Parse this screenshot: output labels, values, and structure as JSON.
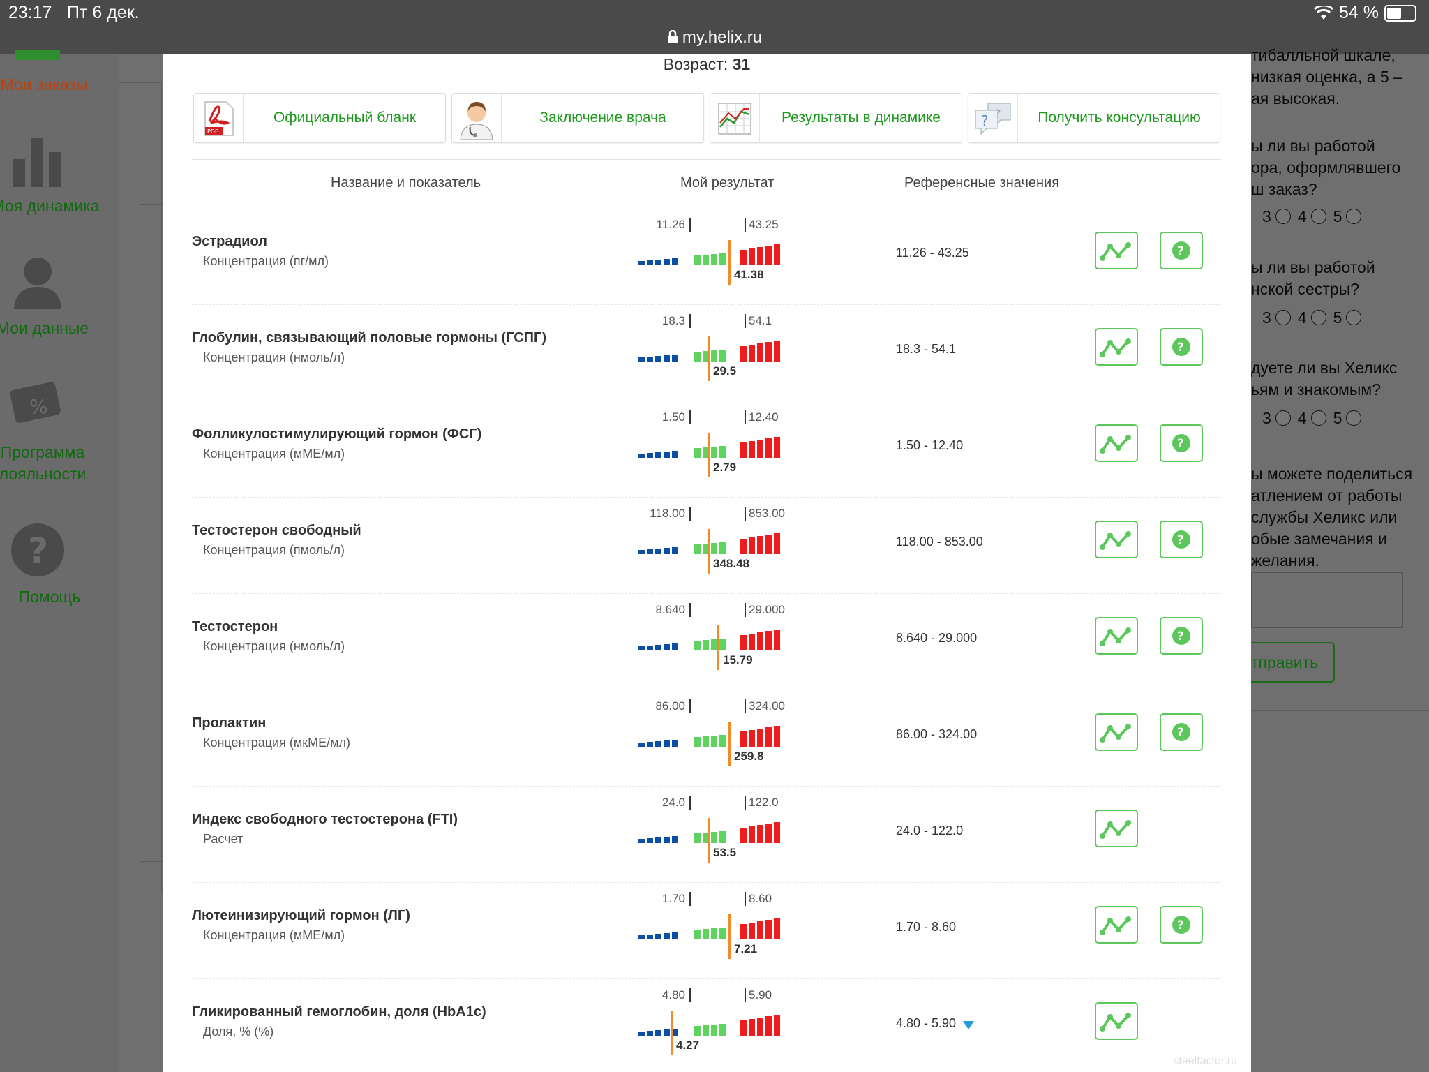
{
  "status": {
    "time": "23:17",
    "date": "Пт 6 дек.",
    "battery": "54 %",
    "url": "my.helix.ru"
  },
  "nav": [
    {
      "label": "Мои заказы"
    },
    {
      "label": "Моя динамика"
    },
    {
      "label": "Мои данные"
    },
    {
      "label": "Программа лояльности"
    },
    {
      "label": "Помощь"
    }
  ],
  "right": {
    "lines": [
      "тибалльной шкале,",
      "низкая оценка, а 5 –",
      "ая высокая.",
      "ы ли вы работой",
      "ора, оформлявшего",
      "ш заказ?",
      "ы ли вы работой",
      "нской сестры?",
      "дуете ли вы Хеликс",
      "ьям и знакомым?",
      "ы можете поделиться",
      "атлением от работы",
      "службы Хеликс или",
      "обые замечания и",
      "желания."
    ],
    "radio_labels": [
      "3",
      "4",
      "5"
    ],
    "submit": "тправить"
  },
  "modal": {
    "age_label": "Возраст:",
    "age_value": "31",
    "toolbar": [
      {
        "label": "Официальный бланк",
        "icon": "pdf-icon"
      },
      {
        "label": "Заключение врача",
        "icon": "doctor-icon"
      },
      {
        "label": "Результаты в динамике",
        "icon": "chart-icon"
      },
      {
        "label": "Получить консультацию",
        "icon": "chat-question-icon"
      }
    ],
    "headers": {
      "name": "Название и показатель",
      "result": "Мой результат",
      "reference": "Референсные значения"
    },
    "rows": [
      {
        "name": "Эстрадиол",
        "unit": "Концентрация (пг/мл)",
        "low": "11.26",
        "high": "43.25",
        "value": "41.38",
        "level": 0.56,
        "reference": "11.26 - 43.25",
        "help": true,
        "flag": ""
      },
      {
        "name": "Глобулин, связывающий половые гормоны (ГСПГ)",
        "unit": "Концентрация (нмоль/л)",
        "low": "18.3",
        "high": "54.1",
        "value": "29.5",
        "level": 0.43,
        "reference": "18.3 - 54.1",
        "help": true,
        "flag": ""
      },
      {
        "name": "Фолликулостимулирующий гормон (ФСГ)",
        "unit": "Концентрация (мМЕ/мл)",
        "low": "1.50",
        "high": "12.40",
        "value": "2.79",
        "level": 0.43,
        "reference": "1.50 - 12.40",
        "help": true,
        "flag": ""
      },
      {
        "name": "Тестостерон свободный",
        "unit": "Концентрация (пмоль/л)",
        "low": "118.00",
        "high": "853.00",
        "value": "348.48",
        "level": 0.43,
        "reference": "118.00 - 853.00",
        "help": true,
        "flag": ""
      },
      {
        "name": "Тестостерон",
        "unit": "Концентрация (нмоль/л)",
        "low": "8.640",
        "high": "29.000",
        "value": "15.79",
        "level": 0.49,
        "reference": "8.640 - 29.000",
        "help": true,
        "flag": ""
      },
      {
        "name": "Пролактин",
        "unit": "Концентрация (мкМЕ/мл)",
        "low": "86.00",
        "high": "324.00",
        "value": "259.8",
        "level": 0.56,
        "reference": "86.00 - 324.00",
        "help": true,
        "flag": ""
      },
      {
        "name": "Индекс свободного тестостерона (FTI)",
        "unit": "Расчет",
        "low": "24.0",
        "high": "122.0",
        "value": "53.5",
        "level": 0.43,
        "reference": "24.0 - 122.0",
        "help": false,
        "flag": ""
      },
      {
        "name": "Лютеинизирующий гормон (ЛГ)",
        "unit": "Концентрация (мМЕ/мл)",
        "low": "1.70",
        "high": "8.60",
        "value": "7.21",
        "level": 0.56,
        "reference": "1.70 - 8.60",
        "help": true,
        "flag": ""
      },
      {
        "name": "Гликированный гемоглобин, доля (HbA1c)",
        "unit": "Доля, % (%)",
        "low": "4.80",
        "high": "5.90",
        "value": "4.27",
        "level": 0.2,
        "reference": "4.80 - 5.90",
        "help": false,
        "flag": "down"
      }
    ]
  },
  "watermark": "steelfactor.ru",
  "colors": {
    "low": "#0a4fa3",
    "normal": "#5ed35e",
    "high": "#ee1c1c",
    "marker": "#f28a2a",
    "accent": "#1e9a1e"
  }
}
